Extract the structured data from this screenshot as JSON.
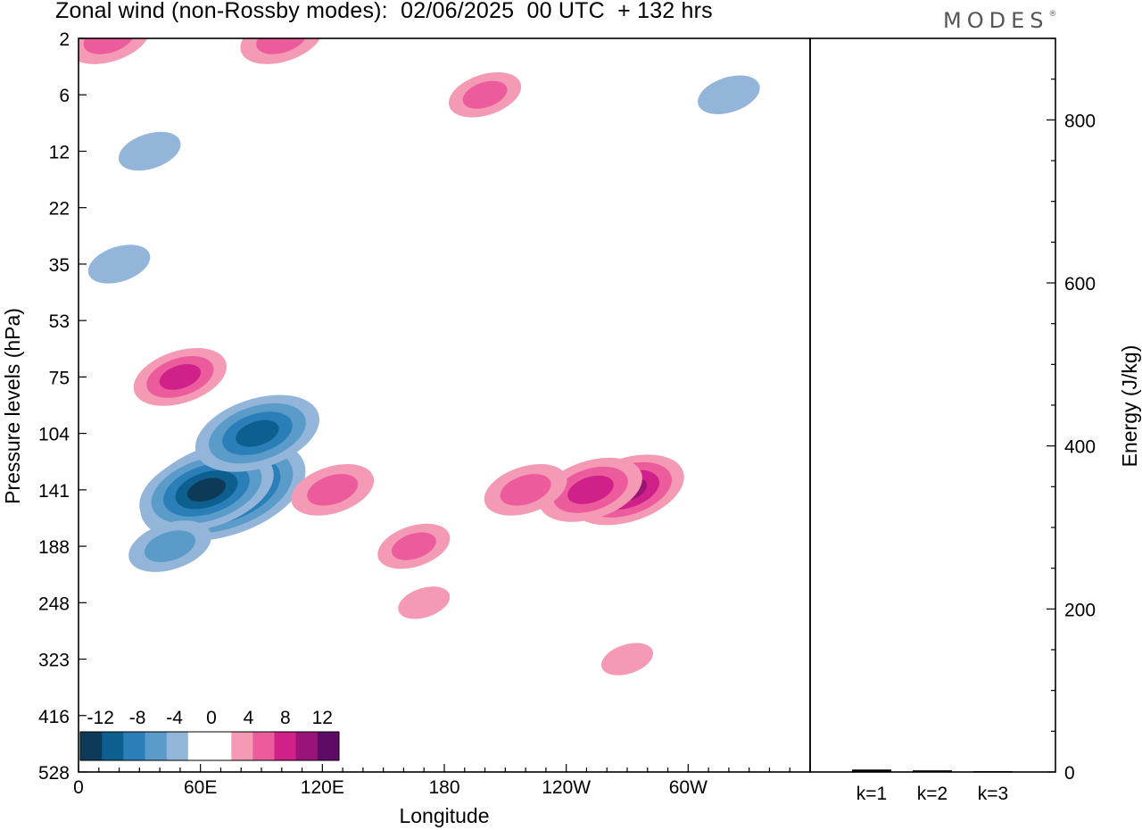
{
  "title": "Zonal wind (non-Rossby modes):  02/06/2025  00 UTC  + 132 hrs",
  "logo": "MODES",
  "logo_mark": "®",
  "colors": {
    "negative": [
      "#0d3b57",
      "#0d5f8f",
      "#2b7fb8",
      "#5a9bc9",
      "#93b5d9",
      "#cacde3"
    ],
    "positive": [
      "#f9c6c5",
      "#f59ab5",
      "#ec5c9c",
      "#cf2189",
      "#991477",
      "#5d0b66"
    ],
    "zero": "#ffffff"
  },
  "chart_data": [
    {
      "type": "heatmap",
      "variable": "Zonal wind (non-Rossby modes)",
      "xlabel": "Longitude",
      "ylabel": "Pressure levels (hPa)",
      "x_ticks": [
        "0",
        "60E",
        "120E",
        "180",
        "120W",
        "60W"
      ],
      "x_tick_degrees": [
        0,
        60,
        120,
        180,
        240,
        300
      ],
      "xlim": [
        0,
        360
      ],
      "y_ticks": [
        "2",
        "6",
        "12",
        "22",
        "35",
        "53",
        "75",
        "104",
        "141",
        "188",
        "248",
        "323",
        "416",
        "528"
      ],
      "colorbar_labels": [
        "-12",
        "-8",
        "-4",
        "0",
        "4",
        "8",
        "12"
      ],
      "colorbar_levels": [
        -12,
        -10,
        -8,
        -6,
        -4,
        -2,
        0,
        2,
        4,
        6,
        8,
        10,
        12
      ],
      "features": [
        {
          "lon": 71,
          "level": "141",
          "value": -13
        },
        {
          "lon": 63,
          "level": "141",
          "value": -10
        },
        {
          "lon": 88,
          "level": "104",
          "value": -9
        },
        {
          "lon": 45,
          "level": "188",
          "value": -5
        },
        {
          "lon": 20,
          "level": "35",
          "value": -3
        },
        {
          "lon": 35,
          "level": "12",
          "value": -3
        },
        {
          "lon": 270,
          "level": "141",
          "value": 8
        },
        {
          "lon": 252,
          "level": "141",
          "value": 7
        },
        {
          "lon": 50,
          "level": "75",
          "value": 6
        },
        {
          "lon": 125,
          "level": "141",
          "value": 5
        },
        {
          "lon": 220,
          "level": "141",
          "value": 5
        },
        {
          "lon": 165,
          "level": "188",
          "value": 4
        },
        {
          "lon": 100,
          "level": "2",
          "value": 5
        },
        {
          "lon": 15,
          "level": "2",
          "value": 5
        },
        {
          "lon": 200,
          "level": "6",
          "value": 4
        },
        {
          "lon": 320,
          "level": "6",
          "value": -3
        },
        {
          "lon": 170,
          "level": "248",
          "value": 2
        },
        {
          "lon": 270,
          "level": "323",
          "value": 2
        }
      ]
    },
    {
      "type": "bar",
      "categories": [
        "k=1",
        "k=2",
        "k=3"
      ],
      "values": [
        3,
        2,
        1
      ],
      "ylabel": "Energy (J/kg)",
      "ylim": [
        0,
        900
      ],
      "y_ticks": [
        0,
        200,
        400,
        600,
        800
      ]
    }
  ]
}
